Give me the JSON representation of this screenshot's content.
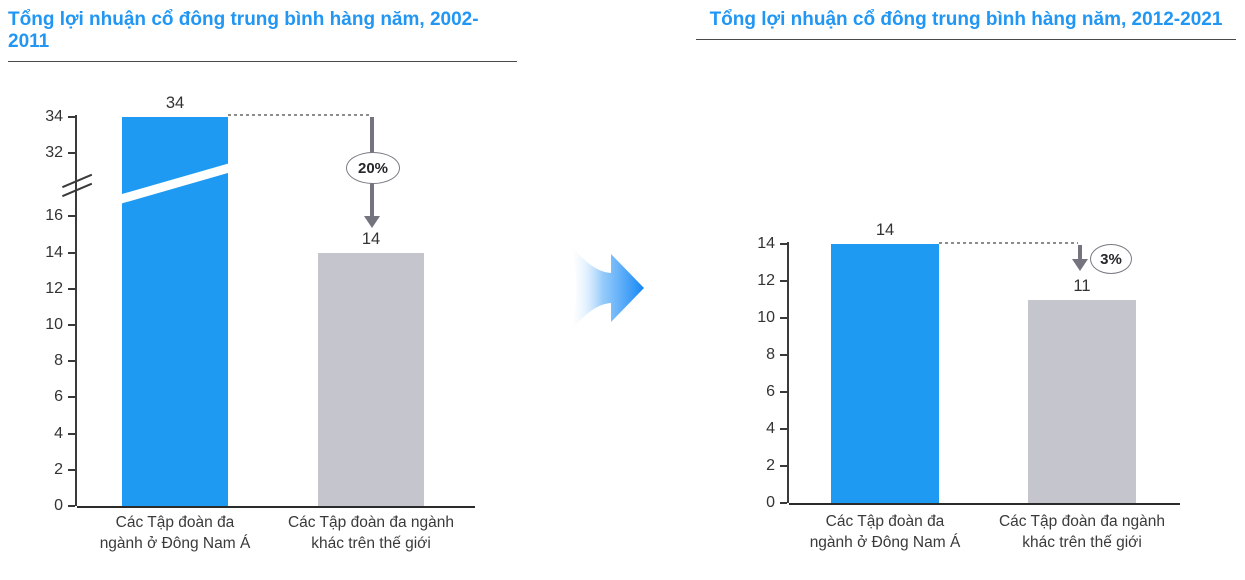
{
  "page": {
    "background": "#FFFFFF"
  },
  "colors": {
    "title_blue": "#2196F3",
    "bar_blue": "#1E9AF3",
    "bar_gray": "#C5C5CD",
    "decline_arrow_gray": "#74747E",
    "axis": "#3A3A3A",
    "text": "#333333"
  },
  "transition_arrow": {
    "icon": "right-arrow",
    "color_from": "#FFFFFF",
    "color_to": "#1487F5"
  },
  "chart_data": [
    {
      "type": "bar",
      "title": "Tổng lợi nhuận cổ đông trung bình hàng năm, 2002-2011",
      "categories": [
        "Các Tập đoàn đa ngành ở Đông Nam Á",
        "Các Tập đoàn đa ngành khác trên thế giới"
      ],
      "category_lines": [
        [
          "Các Tập đoàn đa",
          "ngành ở Đông Nam Á"
        ],
        [
          "Các Tập đoàn đa ngành",
          "khác trên thế giới"
        ]
      ],
      "values": [
        34,
        14
      ],
      "bar_colors": [
        "#1E9AF3",
        "#C5C5CD"
      ],
      "ticks": [
        0,
        2,
        4,
        6,
        8,
        10,
        12,
        14,
        16,
        32,
        34
      ],
      "axis_break": true,
      "break_between": [
        16,
        32
      ],
      "change_badge": "20%",
      "ylim": [
        0,
        34
      ],
      "grid": false,
      "legend": null
    },
    {
      "type": "bar",
      "title": "Tổng lợi nhuận cổ đông trung bình hàng năm, 2012-2021",
      "categories": [
        "Các Tập đoàn đa ngành ở Đông Nam Á",
        "Các Tập đoàn đa ngành khác trên thế giới"
      ],
      "category_lines": [
        [
          "Các Tập đoàn đa",
          "ngành ở Đông Nam Á"
        ],
        [
          "Các Tập đoàn đa ngành",
          "khác trên thế giới"
        ]
      ],
      "values": [
        14,
        11
      ],
      "bar_colors": [
        "#1E9AF3",
        "#C5C5CD"
      ],
      "ticks": [
        0,
        2,
        4,
        6,
        8,
        10,
        12,
        14
      ],
      "axis_break": false,
      "change_badge": "3%",
      "ylim": [
        0,
        14
      ],
      "grid": false,
      "legend": null
    }
  ]
}
